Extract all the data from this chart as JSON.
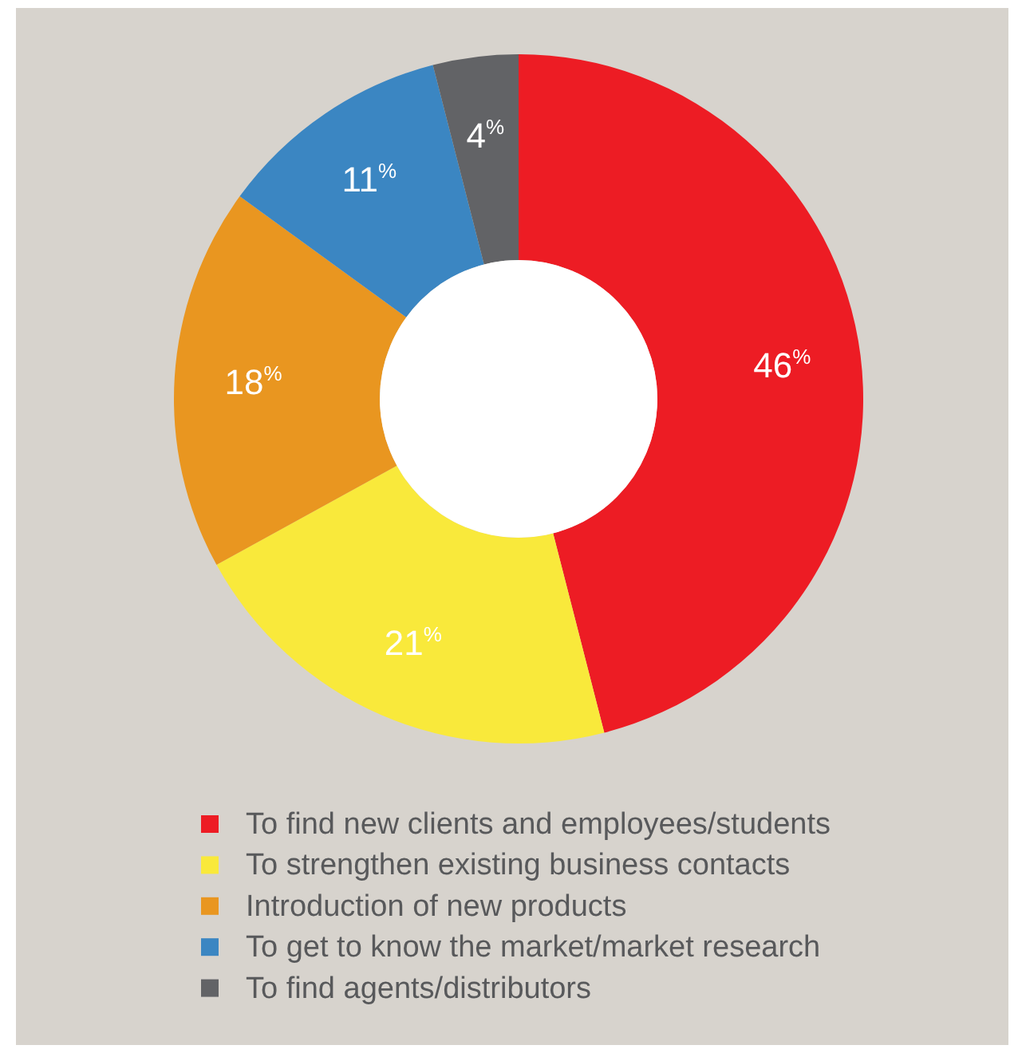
{
  "chart_data": {
    "type": "donut",
    "categories": [
      "To find new clients and employees/students",
      "To strengthen existing business contacts",
      "Introduction of new products",
      "To get to know the market/market research",
      "To find agents/distributors"
    ],
    "values": [
      46,
      21,
      18,
      11,
      4
    ],
    "colors": [
      "#ed1c24",
      "#f9e93b",
      "#e99620",
      "#3b86c2",
      "#626366"
    ],
    "value_labels": [
      "46$^{%}$",
      "21$^{%}$",
      "18$^{%}$",
      "11$^{%}$",
      "4$^{%}$"
    ],
    "legend": "bottom"
  }
}
